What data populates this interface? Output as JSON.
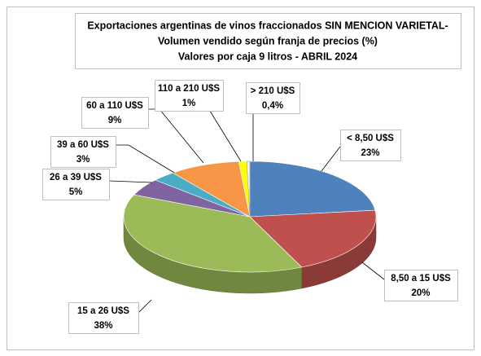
{
  "chart_data": {
    "type": "pie",
    "title": [
      "Exportaciones argentinas de vinos fraccionados SIN MENCION VARIETAL-",
      "Volumen vendido según franja de precios (%)",
      "Valores por caja 9 litros - ABRIL 2024"
    ],
    "categories": [
      "< 8,50 U$S",
      "8,50 a 15 U$S",
      "15 a 26 U$S",
      "26 a 39 U$S",
      "39 a 60 U$S",
      "60 a 110 U$S",
      "110 a 210 U$S",
      "> 210 U$S"
    ],
    "values": [
      23,
      20,
      38,
      5,
      3,
      9,
      1,
      0.4
    ],
    "value_labels": [
      "23%",
      "20%",
      "38%",
      "5%",
      "3%",
      "9%",
      "1%",
      "0,4%"
    ],
    "colors": [
      "#4f81bd",
      "#c0504d",
      "#9bbb59",
      "#8064a2",
      "#4bacc6",
      "#f79646",
      "#ffff00",
      "#f4f4f4"
    ]
  }
}
